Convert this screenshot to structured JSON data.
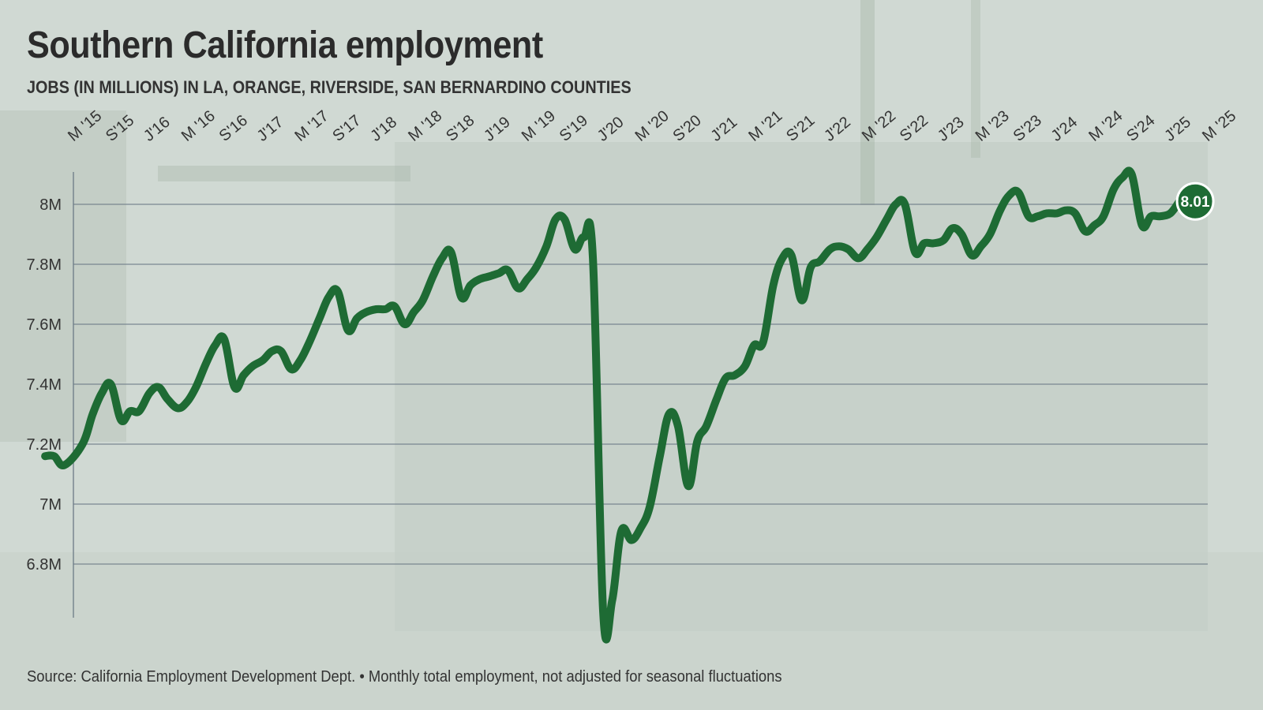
{
  "colors": {
    "line": "#1e6b34",
    "grid": "#6c7a86",
    "background": "#cdd7d0",
    "label_bg": "#1e6b34"
  },
  "chart_data": {
    "type": "line",
    "title": "Southern California employment",
    "subtitle": "JOBS (IN MILLIONS) IN LA, ORANGE, RIVERSIDE, SAN BERNARDINO COUNTIES",
    "source": "Source: California Employment Development Dept. • Monthly total employment, not adjusted for seasonal fluctuations",
    "xlabel": "",
    "ylabel": "",
    "x_range": [
      2015.25,
      2025.25
    ],
    "ylim": [
      6.65,
      8.1
    ],
    "grid": true,
    "x_ticks": [
      {
        "label": "M '15",
        "x": 2015.25
      },
      {
        "label": "S'15",
        "x": 2015.583
      },
      {
        "label": "J'16",
        "x": 2015.917
      },
      {
        "label": "M '16",
        "x": 2016.25
      },
      {
        "label": "S'16",
        "x": 2016.583
      },
      {
        "label": "J'17",
        "x": 2016.917
      },
      {
        "label": "M '17",
        "x": 2017.25
      },
      {
        "label": "S'17",
        "x": 2017.583
      },
      {
        "label": "J'18",
        "x": 2017.917
      },
      {
        "label": "M '18",
        "x": 2018.25
      },
      {
        "label": "S'18",
        "x": 2018.583
      },
      {
        "label": "J'19",
        "x": 2018.917
      },
      {
        "label": "M '19",
        "x": 2019.25
      },
      {
        "label": "S'19",
        "x": 2019.583
      },
      {
        "label": "J'20",
        "x": 2019.917
      },
      {
        "label": "M '20",
        "x": 2020.25
      },
      {
        "label": "S'20",
        "x": 2020.583
      },
      {
        "label": "J'21",
        "x": 2020.917
      },
      {
        "label": "M '21",
        "x": 2021.25
      },
      {
        "label": "S'21",
        "x": 2021.583
      },
      {
        "label": "J'22",
        "x": 2021.917
      },
      {
        "label": "M '22",
        "x": 2022.25
      },
      {
        "label": "S'22",
        "x": 2022.583
      },
      {
        "label": "J'23",
        "x": 2022.917
      },
      {
        "label": "M '23",
        "x": 2023.25
      },
      {
        "label": "S'23",
        "x": 2023.583
      },
      {
        "label": "J'24",
        "x": 2023.917
      },
      {
        "label": "M '24",
        "x": 2024.25
      },
      {
        "label": "S'24",
        "x": 2024.583
      },
      {
        "label": "J'25",
        "x": 2024.917
      },
      {
        "label": "M '25",
        "x": 2025.25
      }
    ],
    "y_ticks": [
      {
        "label": "6.8M",
        "value": 6.8
      },
      {
        "label": "7M",
        "value": 7.0
      },
      {
        "label": "7.2M",
        "value": 7.2
      },
      {
        "label": "7.4M",
        "value": 7.4
      },
      {
        "label": "7.6M",
        "value": 7.6
      },
      {
        "label": "7.8M",
        "value": 7.8
      },
      {
        "label": "8M",
        "value": 8.0
      }
    ],
    "series": [
      {
        "name": "Jobs (millions)",
        "points": [
          [
            2015.0,
            7.16
          ],
          [
            2015.08,
            7.16
          ],
          [
            2015.17,
            7.13
          ],
          [
            2015.33,
            7.2
          ],
          [
            2015.42,
            7.3
          ],
          [
            2015.5,
            7.37
          ],
          [
            2015.58,
            7.4
          ],
          [
            2015.67,
            7.28
          ],
          [
            2015.75,
            7.31
          ],
          [
            2015.83,
            7.31
          ],
          [
            2015.92,
            7.37
          ],
          [
            2016.0,
            7.39
          ],
          [
            2016.08,
            7.35
          ],
          [
            2016.17,
            7.32
          ],
          [
            2016.25,
            7.34
          ],
          [
            2016.33,
            7.39
          ],
          [
            2016.42,
            7.47
          ],
          [
            2016.5,
            7.53
          ],
          [
            2016.58,
            7.55
          ],
          [
            2016.67,
            7.39
          ],
          [
            2016.75,
            7.43
          ],
          [
            2016.83,
            7.46
          ],
          [
            2016.92,
            7.48
          ],
          [
            2017.0,
            7.51
          ],
          [
            2017.08,
            7.51
          ],
          [
            2017.17,
            7.45
          ],
          [
            2017.25,
            7.48
          ],
          [
            2017.33,
            7.54
          ],
          [
            2017.42,
            7.62
          ],
          [
            2017.5,
            7.69
          ],
          [
            2017.58,
            7.71
          ],
          [
            2017.67,
            7.58
          ],
          [
            2017.75,
            7.62
          ],
          [
            2017.83,
            7.64
          ],
          [
            2017.92,
            7.65
          ],
          [
            2018.0,
            7.65
          ],
          [
            2018.08,
            7.66
          ],
          [
            2018.17,
            7.6
          ],
          [
            2018.25,
            7.64
          ],
          [
            2018.33,
            7.68
          ],
          [
            2018.42,
            7.76
          ],
          [
            2018.5,
            7.82
          ],
          [
            2018.58,
            7.84
          ],
          [
            2018.67,
            7.69
          ],
          [
            2018.75,
            7.73
          ],
          [
            2018.83,
            7.75
          ],
          [
            2018.92,
            7.76
          ],
          [
            2019.0,
            7.77
          ],
          [
            2019.08,
            7.78
          ],
          [
            2019.17,
            7.72
          ],
          [
            2019.25,
            7.75
          ],
          [
            2019.33,
            7.79
          ],
          [
            2019.42,
            7.86
          ],
          [
            2019.5,
            7.95
          ],
          [
            2019.58,
            7.95
          ],
          [
            2019.67,
            7.85
          ],
          [
            2019.75,
            7.89
          ],
          [
            2019.83,
            7.82
          ],
          [
            2019.92,
            6.64
          ],
          [
            2020.0,
            6.68
          ],
          [
            2020.08,
            6.91
          ],
          [
            2020.17,
            6.88
          ],
          [
            2020.25,
            6.92
          ],
          [
            2020.33,
            6.99
          ],
          [
            2020.42,
            7.16
          ],
          [
            2020.5,
            7.3
          ],
          [
            2020.58,
            7.26
          ],
          [
            2020.67,
            7.06
          ],
          [
            2020.75,
            7.21
          ],
          [
            2020.83,
            7.26
          ],
          [
            2020.92,
            7.35
          ],
          [
            2021.0,
            7.42
          ],
          [
            2021.08,
            7.43
          ],
          [
            2021.17,
            7.46
          ],
          [
            2021.25,
            7.53
          ],
          [
            2021.33,
            7.54
          ],
          [
            2021.42,
            7.73
          ],
          [
            2021.5,
            7.82
          ],
          [
            2021.58,
            7.83
          ],
          [
            2021.67,
            7.68
          ],
          [
            2021.75,
            7.79
          ],
          [
            2021.83,
            7.81
          ],
          [
            2021.92,
            7.85
          ],
          [
            2022.0,
            7.86
          ],
          [
            2022.08,
            7.85
          ],
          [
            2022.17,
            7.82
          ],
          [
            2022.25,
            7.85
          ],
          [
            2022.33,
            7.89
          ],
          [
            2022.42,
            7.95
          ],
          [
            2022.5,
            8.0
          ],
          [
            2022.58,
            8.0
          ],
          [
            2022.67,
            7.84
          ],
          [
            2022.75,
            7.87
          ],
          [
            2022.83,
            7.87
          ],
          [
            2022.92,
            7.88
          ],
          [
            2023.0,
            7.92
          ],
          [
            2023.08,
            7.9
          ],
          [
            2023.17,
            7.83
          ],
          [
            2023.25,
            7.86
          ],
          [
            2023.33,
            7.9
          ],
          [
            2023.42,
            7.98
          ],
          [
            2023.5,
            8.03
          ],
          [
            2023.58,
            8.04
          ],
          [
            2023.67,
            7.96
          ],
          [
            2023.75,
            7.96
          ],
          [
            2023.83,
            7.97
          ],
          [
            2023.92,
            7.97
          ],
          [
            2024.0,
            7.98
          ],
          [
            2024.08,
            7.97
          ],
          [
            2024.17,
            7.91
          ],
          [
            2024.25,
            7.93
          ],
          [
            2024.33,
            7.96
          ],
          [
            2024.42,
            8.05
          ],
          [
            2024.5,
            8.09
          ],
          [
            2024.58,
            8.1
          ],
          [
            2024.67,
            7.93
          ],
          [
            2024.75,
            7.96
          ],
          [
            2024.83,
            7.96
          ],
          [
            2024.92,
            7.97
          ],
          [
            2025.0,
            8.01
          ]
        ]
      }
    ],
    "end_label": {
      "text": "8.01",
      "x": 2025.0,
      "value": 8.01
    }
  }
}
